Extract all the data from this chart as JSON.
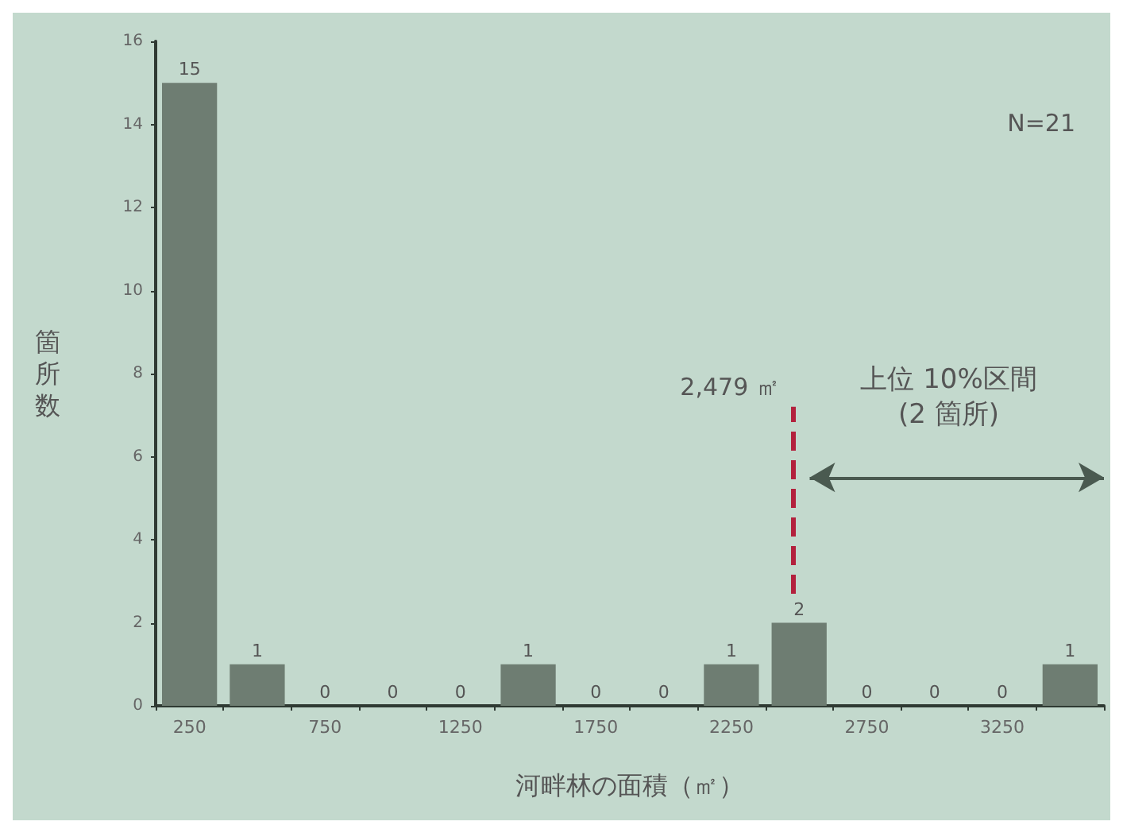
{
  "chart_data": {
    "type": "histogram",
    "xlabel": "河畔林の面積（㎡）",
    "ylabel": "箇所数",
    "bins": [
      125,
      375,
      625,
      875,
      1125,
      1375,
      1625,
      1875,
      2125,
      2375,
      2625,
      2875,
      3125,
      3375,
      3625
    ],
    "values": [
      15,
      1,
      0,
      0,
      0,
      1,
      0,
      0,
      1,
      2,
      0,
      0,
      0,
      1
    ],
    "color": "#6e7d72",
    "xlim": [
      125,
      3625
    ],
    "xticks": [
      250,
      750,
      1250,
      1750,
      2250,
      2750,
      3250
    ],
    "ylim": [
      0,
      16
    ],
    "yticks": [
      0,
      2,
      4,
      6,
      8,
      10,
      12,
      14,
      16
    ],
    "grid": false,
    "data_labels": true,
    "ref_lines": [
      {
        "axis": "x",
        "value": 2479,
        "label": "2,479 ㎡",
        "color": "#b3213d",
        "line_style": "dashed"
      }
    ],
    "annotations": [
      "N=21",
      "上位 10%区間\n(2 箇所)"
    ]
  }
}
